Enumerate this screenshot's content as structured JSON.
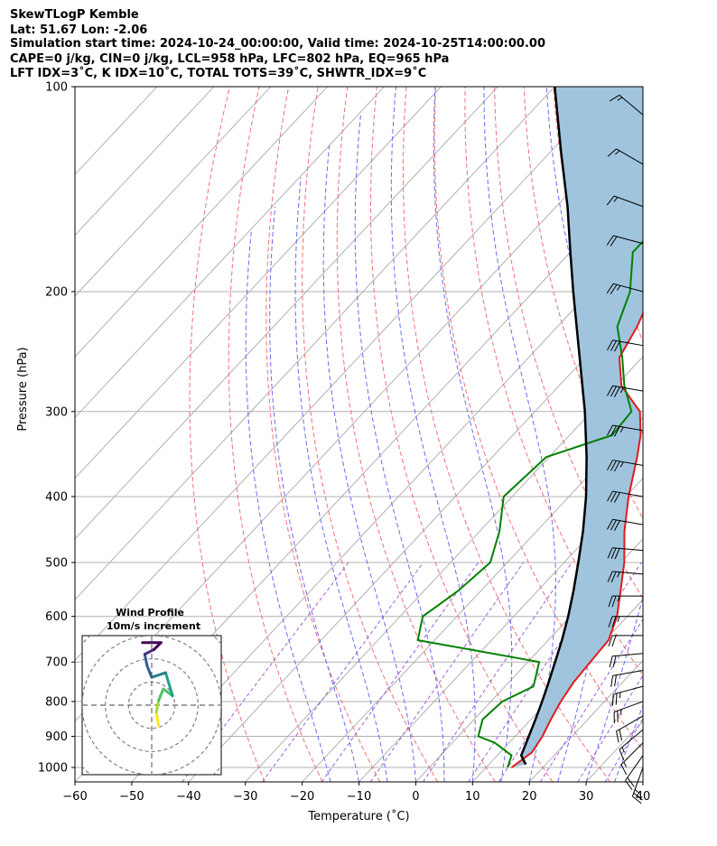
{
  "header": {
    "line1": "SkewTLogP Kemble",
    "line2": "Lat: 51.67   Lon: -2.06",
    "line3": "Simulation start time: 2024-10-24_00:00:00, Valid time: 2024-10-25T14:00:00.00",
    "line4": "CAPE=0 j/kg, CIN=0 j/kg, LCL=958 hPa, LFC=802 hPa, EQ=965 hPa",
    "line5": "LFT IDX=3˚C, K IDX=10˚C, TOTAL TOTS=39˚C, SHWTR_IDX=9˚C"
  },
  "chart_data": {
    "type": "skew-t",
    "xlabel": "Temperature (˚C)",
    "ylabel": "Pressure (hPa)",
    "xlim": [
      -60,
      40
    ],
    "ylim": [
      1050,
      100
    ],
    "x_ticks": [
      "−60",
      "−50",
      "−40",
      "−30",
      "−20",
      "−10",
      "0",
      "10",
      "20",
      "30",
      "40"
    ],
    "x_tick_values": [
      -60,
      -50,
      -40,
      -30,
      -20,
      -10,
      0,
      10,
      20,
      30,
      40
    ],
    "y_ticks": [
      "1000",
      "900",
      "800",
      "700",
      "600",
      "500",
      "400",
      "300",
      "200",
      "100"
    ],
    "y_tick_values": [
      1000,
      900,
      800,
      700,
      600,
      500,
      400,
      300,
      200,
      100
    ],
    "isobars_hpa": [
      1000,
      900,
      800,
      700,
      600,
      500,
      400,
      300,
      200,
      100
    ],
    "isotherm_step_c": 10,
    "dry_adiabats_c": [
      -30,
      -20,
      -10,
      0,
      10,
      20,
      30,
      40,
      50,
      60,
      70,
      80,
      90,
      100,
      110,
      120
    ],
    "moist_adiabats_c": [
      -15,
      -10,
      -5,
      0,
      5,
      10,
      15,
      20,
      25,
      30,
      35
    ],
    "mixing_ratio_lines": [
      0.1,
      0.4,
      1,
      2,
      4,
      7,
      10,
      16,
      24,
      32
    ],
    "series": [
      {
        "name": "Temperature",
        "color": "#e41a1c",
        "points": [
          [
            1000,
            14.5
          ],
          [
            950,
            15.6
          ],
          [
            900,
            14.8
          ],
          [
            850,
            13.5
          ],
          [
            800,
            12.3
          ],
          [
            750,
            11.4
          ],
          [
            700,
            11.0
          ],
          [
            650,
            10.6
          ],
          [
            600,
            8.2
          ],
          [
            550,
            4.6
          ],
          [
            500,
            0.6
          ],
          [
            450,
            -4.5
          ],
          [
            400,
            -9.5
          ],
          [
            350,
            -14.5
          ],
          [
            325,
            -17.5
          ],
          [
            300,
            -21.5
          ],
          [
            275,
            -29
          ],
          [
            250,
            -34
          ],
          [
            225,
            -36
          ],
          [
            200,
            -39
          ],
          [
            175,
            -45
          ],
          [
            150,
            -51
          ],
          [
            125,
            -58
          ],
          [
            110,
            -61
          ],
          [
            100,
            -62
          ]
        ]
      },
      {
        "name": "Dewpoint",
        "color": "#008000",
        "points": [
          [
            1000,
            13.8
          ],
          [
            960,
            12.5
          ],
          [
            920,
            7.5
          ],
          [
            900,
            3.5
          ],
          [
            850,
            1.5
          ],
          [
            800,
            2.0
          ],
          [
            760,
            5.0
          ],
          [
            700,
            2.0
          ],
          [
            650,
            -23.0
          ],
          [
            600,
            -26.0
          ],
          [
            550,
            -24.0
          ],
          [
            500,
            -23.0
          ],
          [
            450,
            -26.5
          ],
          [
            400,
            -31.5
          ],
          [
            350,
            -30.5
          ],
          [
            325,
            -22.5
          ],
          [
            300,
            -23.0
          ],
          [
            275,
            -28.5
          ],
          [
            250,
            -33.5
          ],
          [
            225,
            -39.5
          ],
          [
            200,
            -43.0
          ],
          [
            175,
            -49.0
          ],
          [
            150,
            -49.0
          ],
          [
            125,
            -58.0
          ],
          [
            100,
            -69.0
          ]
        ]
      },
      {
        "name": "Parcel",
        "color": "#000000",
        "points": [
          [
            990,
            16.5
          ],
          [
            960,
            14.2
          ],
          [
            900,
            12.4
          ],
          [
            850,
            10.8
          ],
          [
            800,
            9.0
          ],
          [
            750,
            7.0
          ],
          [
            700,
            4.8
          ],
          [
            650,
            2.4
          ],
          [
            600,
            -0.4
          ],
          [
            550,
            -3.7
          ],
          [
            500,
            -7.5
          ],
          [
            450,
            -11.8
          ],
          [
            400,
            -17.0
          ],
          [
            350,
            -23.4
          ],
          [
            300,
            -31.2
          ],
          [
            250,
            -41.0
          ],
          [
            200,
            -53.0
          ],
          [
            175,
            -60.0
          ],
          [
            150,
            -68.0
          ],
          [
            125,
            -78.0
          ],
          [
            100,
            -90.0
          ]
        ]
      }
    ],
    "wind_barbs": [
      {
        "p": 1000,
        "speed_kt": 25,
        "dir": 200
      },
      {
        "p": 960,
        "speed_kt": 20,
        "dir": 215
      },
      {
        "p": 920,
        "speed_kt": 15,
        "dir": 225
      },
      {
        "p": 880,
        "speed_kt": 15,
        "dir": 230
      },
      {
        "p": 840,
        "speed_kt": 20,
        "dir": 240
      },
      {
        "p": 800,
        "speed_kt": 25,
        "dir": 250
      },
      {
        "p": 760,
        "speed_kt": 25,
        "dir": 255
      },
      {
        "p": 720,
        "speed_kt": 20,
        "dir": 260
      },
      {
        "p": 680,
        "speed_kt": 20,
        "dir": 265
      },
      {
        "p": 640,
        "speed_kt": 20,
        "dir": 270
      },
      {
        "p": 600,
        "speed_kt": 25,
        "dir": 270
      },
      {
        "p": 560,
        "speed_kt": 25,
        "dir": 270
      },
      {
        "p": 520,
        "speed_kt": 25,
        "dir": 275
      },
      {
        "p": 480,
        "speed_kt": 30,
        "dir": 275
      },
      {
        "p": 440,
        "speed_kt": 30,
        "dir": 280
      },
      {
        "p": 400,
        "speed_kt": 30,
        "dir": 280
      },
      {
        "p": 360,
        "speed_kt": 35,
        "dir": 280
      },
      {
        "p": 320,
        "speed_kt": 35,
        "dir": 280
      },
      {
        "p": 280,
        "speed_kt": 35,
        "dir": 280
      },
      {
        "p": 240,
        "speed_kt": 30,
        "dir": 280
      },
      {
        "p": 200,
        "speed_kt": 25,
        "dir": 285
      },
      {
        "p": 170,
        "speed_kt": 20,
        "dir": 285
      },
      {
        "p": 150,
        "speed_kt": 15,
        "dir": 290
      },
      {
        "p": 130,
        "speed_kt": 15,
        "dir": 300
      },
      {
        "p": 110,
        "speed_kt": 15,
        "dir": 310
      }
    ],
    "hodograph": {
      "title": "Wind Profile",
      "subtitle": "10m/s increment",
      "ring_step_ms": 10,
      "range_ms": 30,
      "points": [
        [
          3,
          -9
        ],
        [
          2,
          -3
        ],
        [
          3,
          2
        ],
        [
          5,
          7
        ],
        [
          9,
          4
        ],
        [
          6,
          14
        ],
        [
          0,
          12
        ],
        [
          -2,
          17
        ],
        [
          -3,
          22
        ],
        [
          1,
          24
        ],
        [
          4,
          27
        ],
        [
          -4,
          27
        ]
      ]
    }
  }
}
